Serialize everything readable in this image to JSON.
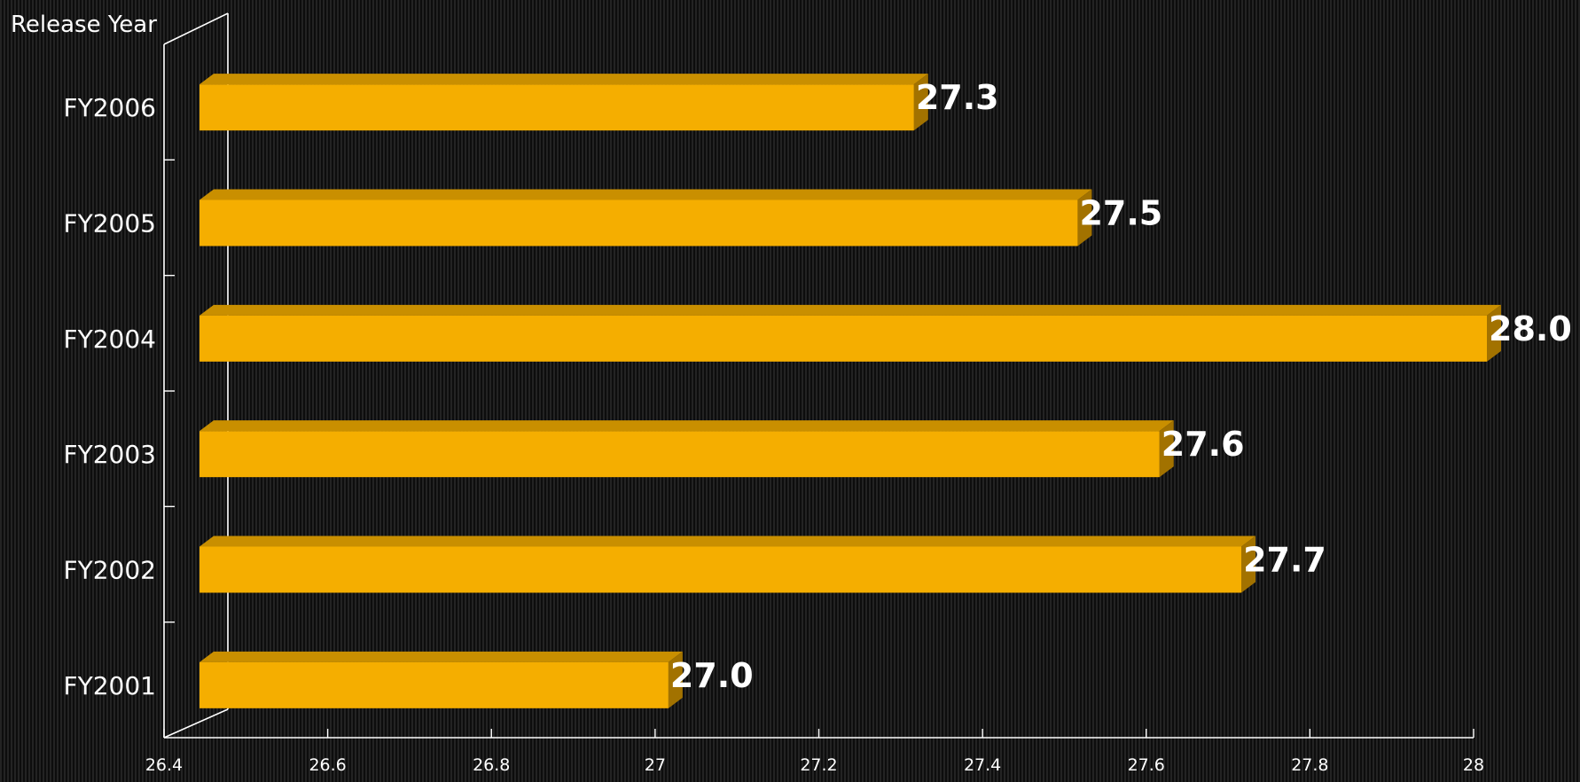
{
  "chart_data": {
    "type": "bar",
    "orientation": "horizontal",
    "ylabel": "Release Year",
    "xlabel": "",
    "title": "",
    "categories": [
      "FY2006",
      "FY2005",
      "FY2004",
      "FY2003",
      "FY2002",
      "FY2001"
    ],
    "values": [
      27.3,
      27.5,
      28.0,
      27.6,
      27.7,
      27.0
    ],
    "data_labels": [
      "27.3",
      "27.5",
      "28.0",
      "27.6",
      "27.7",
      "27.0"
    ],
    "xlim": [
      26.4,
      28
    ],
    "x_ticks": [
      "26.4",
      "26.6",
      "26.8",
      "27",
      "27.2",
      "27.4",
      "27.6",
      "27.8",
      "28"
    ],
    "grid": false,
    "legend": "none",
    "style": "3d",
    "colors": {
      "bar_front": "#F5AE00",
      "bar_top": "#C98F00",
      "bar_side": "#A27200",
      "axis": "#FFFFFF",
      "text": "#FFFFFF"
    }
  }
}
